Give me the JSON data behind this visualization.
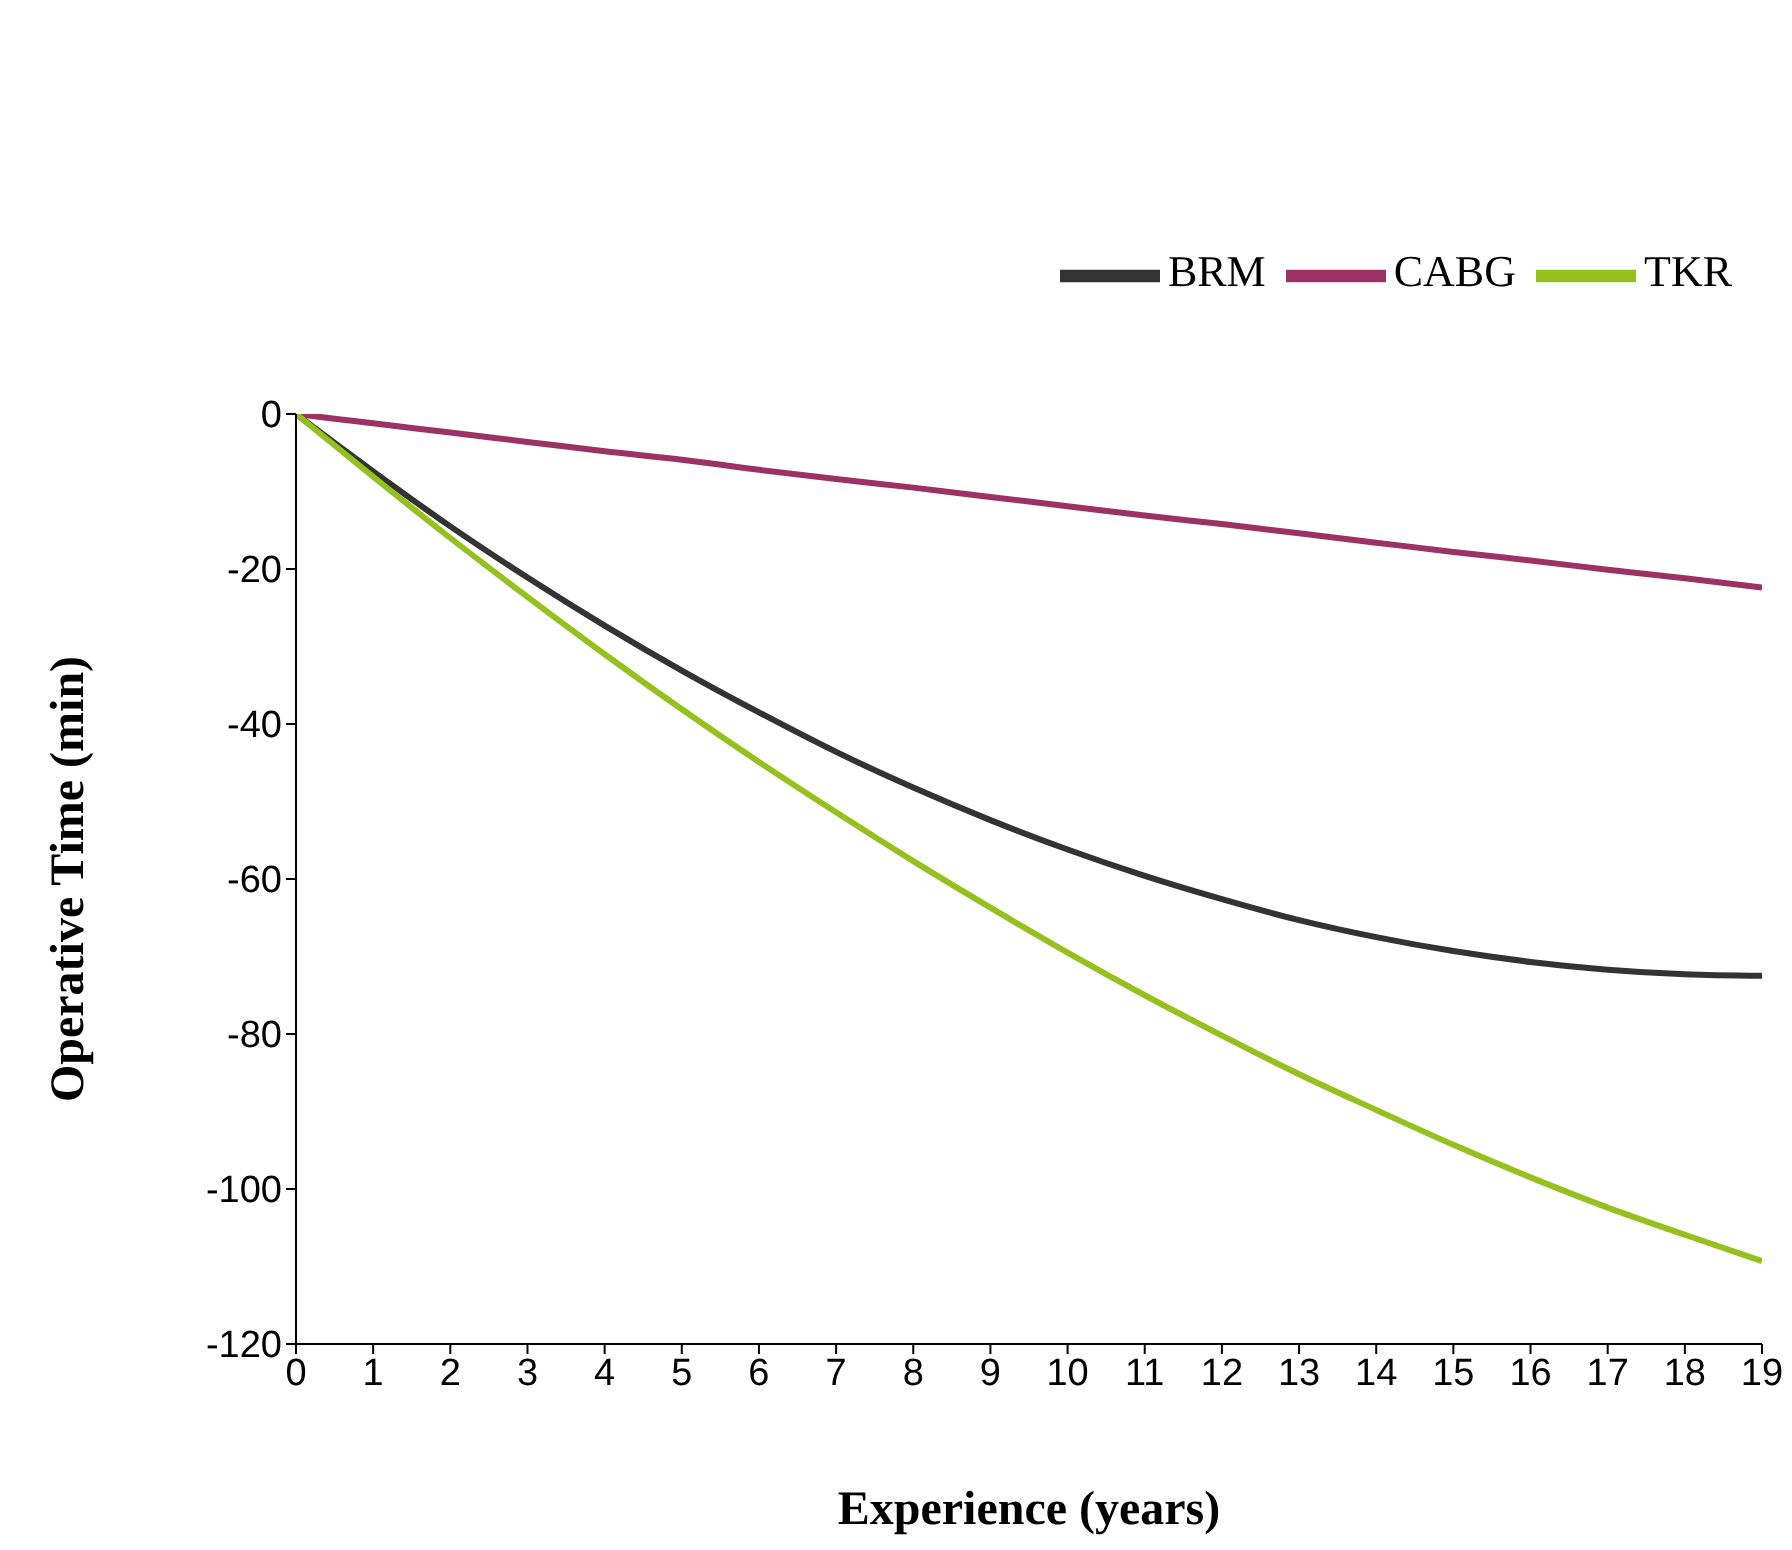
{
  "chart_data": {
    "type": "line",
    "xlabel": "Experience (years)",
    "ylabel": "Operative Time (min)",
    "x": [
      0,
      1,
      2,
      3,
      4,
      5,
      6,
      7,
      8,
      9,
      10,
      11,
      12,
      13,
      14,
      15,
      16,
      17,
      18,
      19
    ],
    "series": [
      {
        "name": "BRM",
        "color": "#333333",
        "values": [
          0,
          -7.4,
          -14.5,
          -21.1,
          -27.3,
          -33.1,
          -38.5,
          -43.6,
          -48.2,
          -52.4,
          -56.2,
          -59.6,
          -62.6,
          -65.3,
          -67.5,
          -69.3,
          -70.7,
          -71.7,
          -72.3,
          -72.5
        ]
      },
      {
        "name": "CABG",
        "color": "#9b3164",
        "values": [
          0,
          -1.2,
          -2.4,
          -3.6,
          -4.8,
          -5.9,
          -7.2,
          -8.4,
          -9.5,
          -10.7,
          -11.9,
          -13.1,
          -14.2,
          -15.4,
          -16.6,
          -17.8,
          -18.9,
          -20.1,
          -21.2,
          -22.4
        ]
      },
      {
        "name": "TKR",
        "color": "#95c11f",
        "values": [
          0,
          -8.1,
          -16.0,
          -23.6,
          -31.0,
          -38.1,
          -44.9,
          -51.4,
          -57.7,
          -63.7,
          -69.5,
          -75.0,
          -80.2,
          -85.2,
          -89.8,
          -94.3,
          -98.5,
          -102.4,
          -105.9,
          -109.3
        ]
      }
    ],
    "xlim": [
      0,
      19
    ],
    "xticks": [
      0,
      1,
      2,
      3,
      4,
      5,
      6,
      7,
      8,
      9,
      10,
      11,
      12,
      13,
      14,
      15,
      16,
      17,
      18,
      19
    ],
    "ylim": [
      -120,
      0
    ],
    "yticks": [
      -120,
      -100,
      -80,
      -60,
      -40,
      -20,
      0
    ],
    "grid": false,
    "legend": "top right",
    "marker": "none",
    "line_style": "solid"
  }
}
